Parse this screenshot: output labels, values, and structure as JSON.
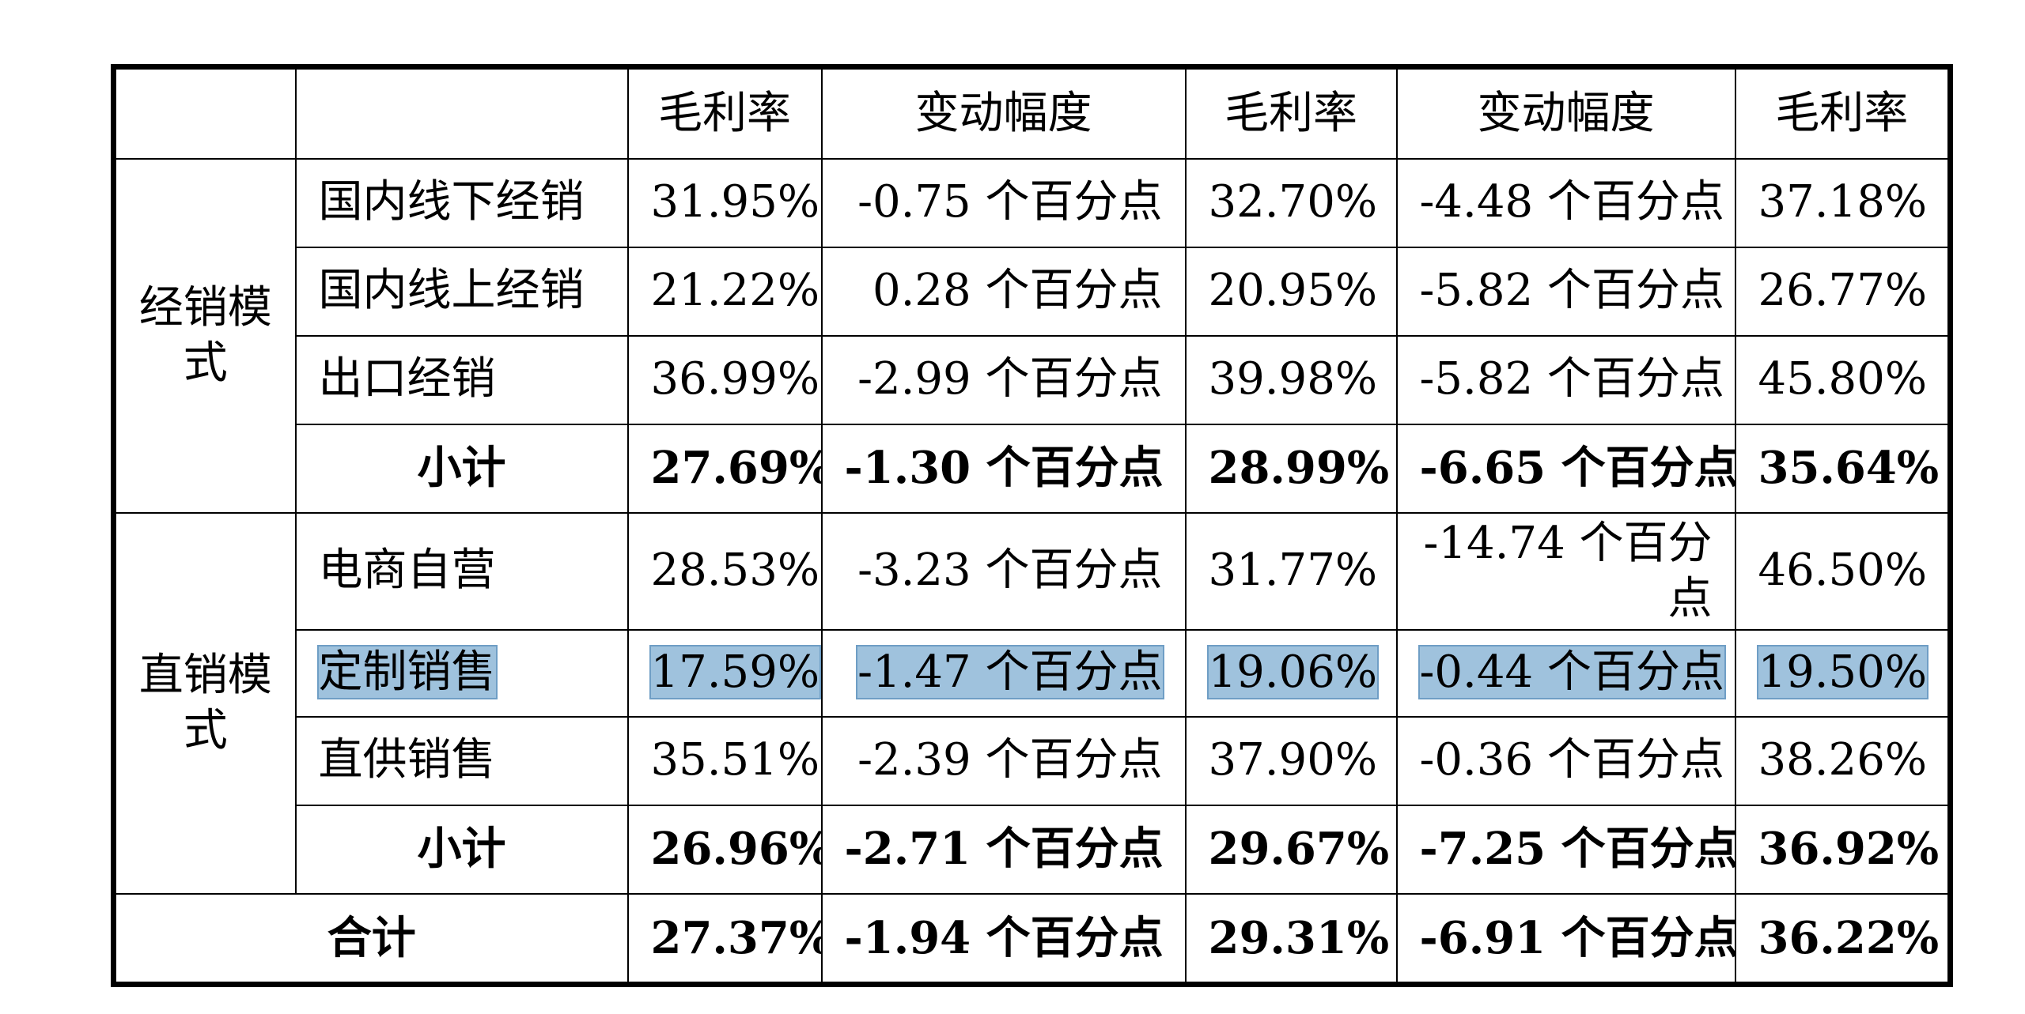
{
  "table": {
    "header": [
      "",
      "",
      "毛利率",
      "变动幅度",
      "毛利率",
      "变动幅度",
      "毛利率"
    ],
    "groups": [
      {
        "name": "经销模式",
        "rows": [
          {
            "label": "国内线下经销",
            "values": [
              "31.95%",
              "-0.75 个百分点",
              "32.70%",
              "-4.48 个百分点",
              "37.18%"
            ]
          },
          {
            "label": "国内线上经销",
            "values": [
              "21.22%",
              "0.28 个百分点",
              "20.95%",
              "-5.82 个百分点",
              "26.77%"
            ]
          },
          {
            "label": "出口经销",
            "values": [
              "36.99%",
              "-2.99 个百分点",
              "39.98%",
              "-5.82 个百分点",
              "45.80%"
            ]
          },
          {
            "label": "小计",
            "values": [
              "27.69%",
              "-1.30 个百分点",
              "28.99%",
              "-6.65 个百分点",
              "35.64%"
            ]
          }
        ]
      },
      {
        "name": "直销模式",
        "rows": [
          {
            "label": "电商自营",
            "values": [
              "28.53%",
              "-3.23 个百分点",
              "31.77%",
              "-14.74 个百分点",
              "46.50%"
            ]
          },
          {
            "label": "定制销售",
            "values": [
              "17.59%",
              "-1.47 个百分点",
              "19.06%",
              "-0.44 个百分点",
              "19.50%"
            ]
          },
          {
            "label": "直供销售",
            "values": [
              "35.51%",
              "-2.39 个百分点",
              "37.90%",
              "-0.36 个百分点",
              "38.26%"
            ]
          },
          {
            "label": "小计",
            "values": [
              "26.96%",
              "-2.71 个百分点",
              "29.67%",
              "-7.25 个百分点",
              "36.92%"
            ]
          }
        ]
      }
    ],
    "total": {
      "label": "合计",
      "values": [
        "27.37%",
        "-1.94 个百分点",
        "29.31%",
        "-6.91 个百分点",
        "36.22%"
      ]
    }
  }
}
